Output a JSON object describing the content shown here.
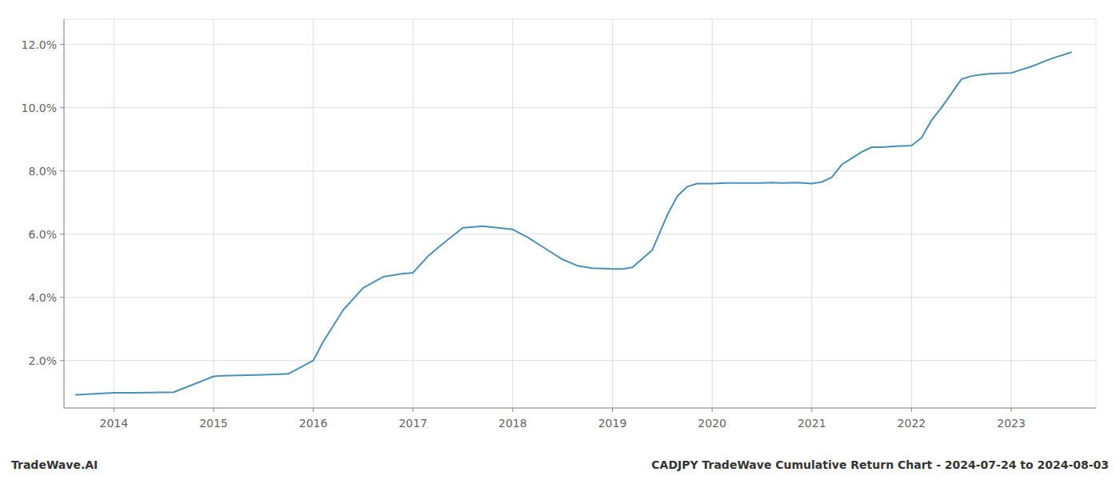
{
  "chart_data": {
    "type": "line",
    "title": "CADJPY TradeWave Cumulative Return Chart - 2024-07-24 to 2024-08-03",
    "annotations": [
      "TradeWave.AI"
    ],
    "color": "#4a90b8",
    "grid": true,
    "x": [
      2013.62,
      2014.0,
      2014.2,
      2014.6,
      2015.0,
      2015.08,
      2015.5,
      2015.75,
      2016.0,
      2016.1,
      2016.3,
      2016.5,
      2016.7,
      2016.9,
      2017.0,
      2017.15,
      2017.3,
      2017.5,
      2017.7,
      2017.85,
      2018.0,
      2018.15,
      2018.3,
      2018.5,
      2018.65,
      2018.8,
      2019.0,
      2019.1,
      2019.2,
      2019.4,
      2019.55,
      2019.65,
      2019.75,
      2019.85,
      2020.0,
      2020.15,
      2020.3,
      2020.5,
      2020.6,
      2020.7,
      2020.85,
      2021.0,
      2021.1,
      2021.2,
      2021.3,
      2021.4,
      2021.5,
      2021.6,
      2021.7,
      2021.85,
      2022.0,
      2022.1,
      2022.2,
      2022.3,
      2022.5,
      2022.6,
      2022.7,
      2022.8,
      2023.0,
      2023.2,
      2023.4,
      2023.6
    ],
    "values": [
      0.0092,
      0.0098,
      0.0098,
      0.01,
      0.015,
      0.0152,
      0.0155,
      0.0158,
      0.02,
      0.026,
      0.036,
      0.043,
      0.0465,
      0.0475,
      0.0478,
      0.053,
      0.057,
      0.062,
      0.0625,
      0.062,
      0.0615,
      0.059,
      0.056,
      0.052,
      0.05,
      0.0492,
      0.049,
      0.049,
      0.0495,
      0.055,
      0.066,
      0.072,
      0.075,
      0.076,
      0.076,
      0.0762,
      0.0762,
      0.0762,
      0.0763,
      0.0762,
      0.0763,
      0.076,
      0.0765,
      0.078,
      0.082,
      0.084,
      0.086,
      0.0875,
      0.0875,
      0.0878,
      0.088,
      0.0905,
      0.096,
      0.1,
      0.109,
      0.11,
      0.1105,
      0.1108,
      0.111,
      0.113,
      0.1155,
      0.1175
    ],
    "xlim": [
      2013.5,
      2023.85
    ],
    "ylim": [
      0.005,
      0.128
    ],
    "xticks": [
      2014,
      2015,
      2016,
      2017,
      2018,
      2019,
      2020,
      2021,
      2022,
      2023
    ],
    "yticks": [
      {
        "value": 0.02,
        "label": "2.0%"
      },
      {
        "value": 0.04,
        "label": "4.0%"
      },
      {
        "value": 0.06,
        "label": "6.0%"
      },
      {
        "value": 0.08,
        "label": "8.0%"
      },
      {
        "value": 0.1,
        "label": "10.0%"
      },
      {
        "value": 0.12,
        "label": "12.0%"
      }
    ]
  }
}
